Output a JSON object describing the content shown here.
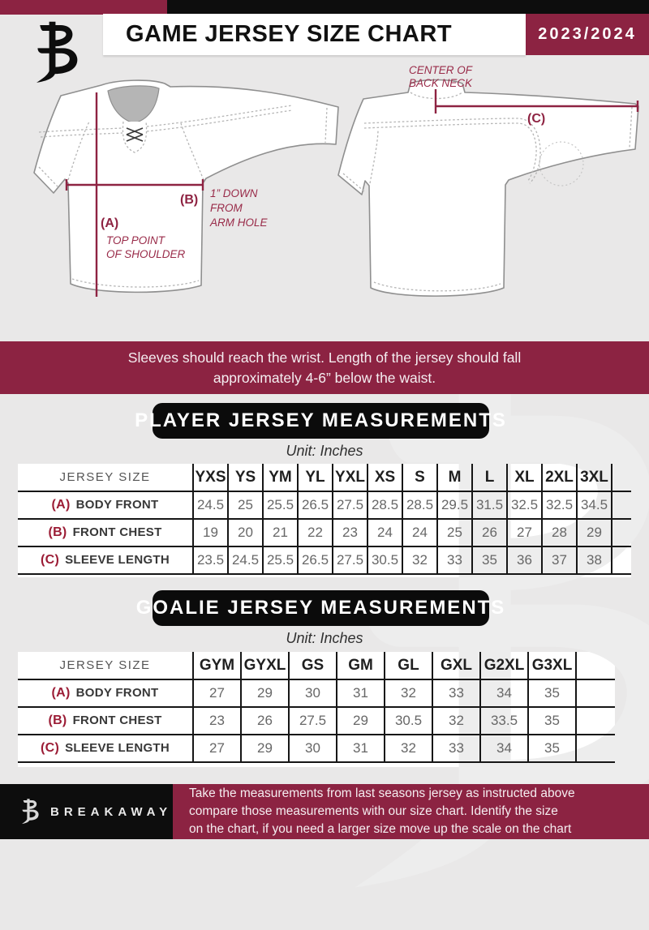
{
  "header": {
    "title": "GAME JERSEY SIZE CHART",
    "season": "2023/2024",
    "logo_name": "breakaway-b-logo"
  },
  "diagram": {
    "front": {
      "a_label": "(A)",
      "a_caption": [
        "TOP POINT",
        "OF SHOULDER"
      ],
      "b_label": "(B)",
      "b_caption": [
        "1” DOWN",
        "FROM",
        "ARM HOLE"
      ]
    },
    "back": {
      "c_label": "(C)",
      "caption": [
        "CENTER OF",
        "BACK NECK"
      ]
    }
  },
  "banner": {
    "line1": "Sleeves should reach the wrist. Length of the jersey should fall",
    "line2": "approximately 4-6” below the waist."
  },
  "player": {
    "title": "PLAYER JERSEY MEASUREMENTS",
    "unit": "Unit: Inches",
    "table": {
      "corner": "JERSEY SIZE",
      "sizes": [
        "YXS",
        "YS",
        "YM",
        "YL",
        "YXL",
        "XS",
        "S",
        "M",
        "L",
        "XL",
        "2XL",
        "3XL"
      ],
      "rows": [
        {
          "prefix": "(A)",
          "label": "BODY FRONT",
          "values": [
            "24.5",
            "25",
            "25.5",
            "26.5",
            "27.5",
            "28.5",
            "28.5",
            "29.5",
            "31.5",
            "32.5",
            "32.5",
            "34.5"
          ]
        },
        {
          "prefix": "(B)",
          "label": "FRONT CHEST",
          "values": [
            "19",
            "20",
            "21",
            "22",
            "23",
            "24",
            "24",
            "25",
            "26",
            "27",
            "28",
            "29"
          ]
        },
        {
          "prefix": "(C)",
          "label": "SLEEVE LENGTH",
          "values": [
            "23.5",
            "24.5",
            "25.5",
            "26.5",
            "27.5",
            "30.5",
            "32",
            "33",
            "35",
            "36",
            "37",
            "38"
          ]
        }
      ]
    }
  },
  "goalie": {
    "title": "GOALIE JERSEY MEASUREMENTS",
    "unit": "Unit: Inches",
    "table": {
      "corner": "JERSEY SIZE",
      "sizes": [
        "GYM",
        "GYXL",
        "GS",
        "GM",
        "GL",
        "GXL",
        "G2XL",
        "G3XL"
      ],
      "rows": [
        {
          "prefix": "(A)",
          "label": "BODY FRONT",
          "values": [
            "27",
            "29",
            "30",
            "31",
            "32",
            "33",
            "34",
            "35"
          ]
        },
        {
          "prefix": "(B)",
          "label": "FRONT CHEST",
          "values": [
            "23",
            "26",
            "27.5",
            "29",
            "30.5",
            "32",
            "33.5",
            "35"
          ]
        },
        {
          "prefix": "(C)",
          "label": "SLEEVE LENGTH",
          "values": [
            "27",
            "29",
            "30",
            "31",
            "32",
            "33",
            "34",
            "35"
          ]
        }
      ]
    }
  },
  "footer": {
    "brand": "BREAKAWAY",
    "lines": [
      "Take the measurements from last seasons jersey as instructed above",
      "compare those measurements  with our size chart. Identify the size",
      "on the chart, if you need a larger size move up the scale on the chart"
    ]
  },
  "colors": {
    "maroon": "#8c2342",
    "black": "#0d0d0d",
    "page_bg": "#e9e8e8",
    "annotation_maroon": "#8e2342",
    "table_value_gray": "#676767"
  }
}
